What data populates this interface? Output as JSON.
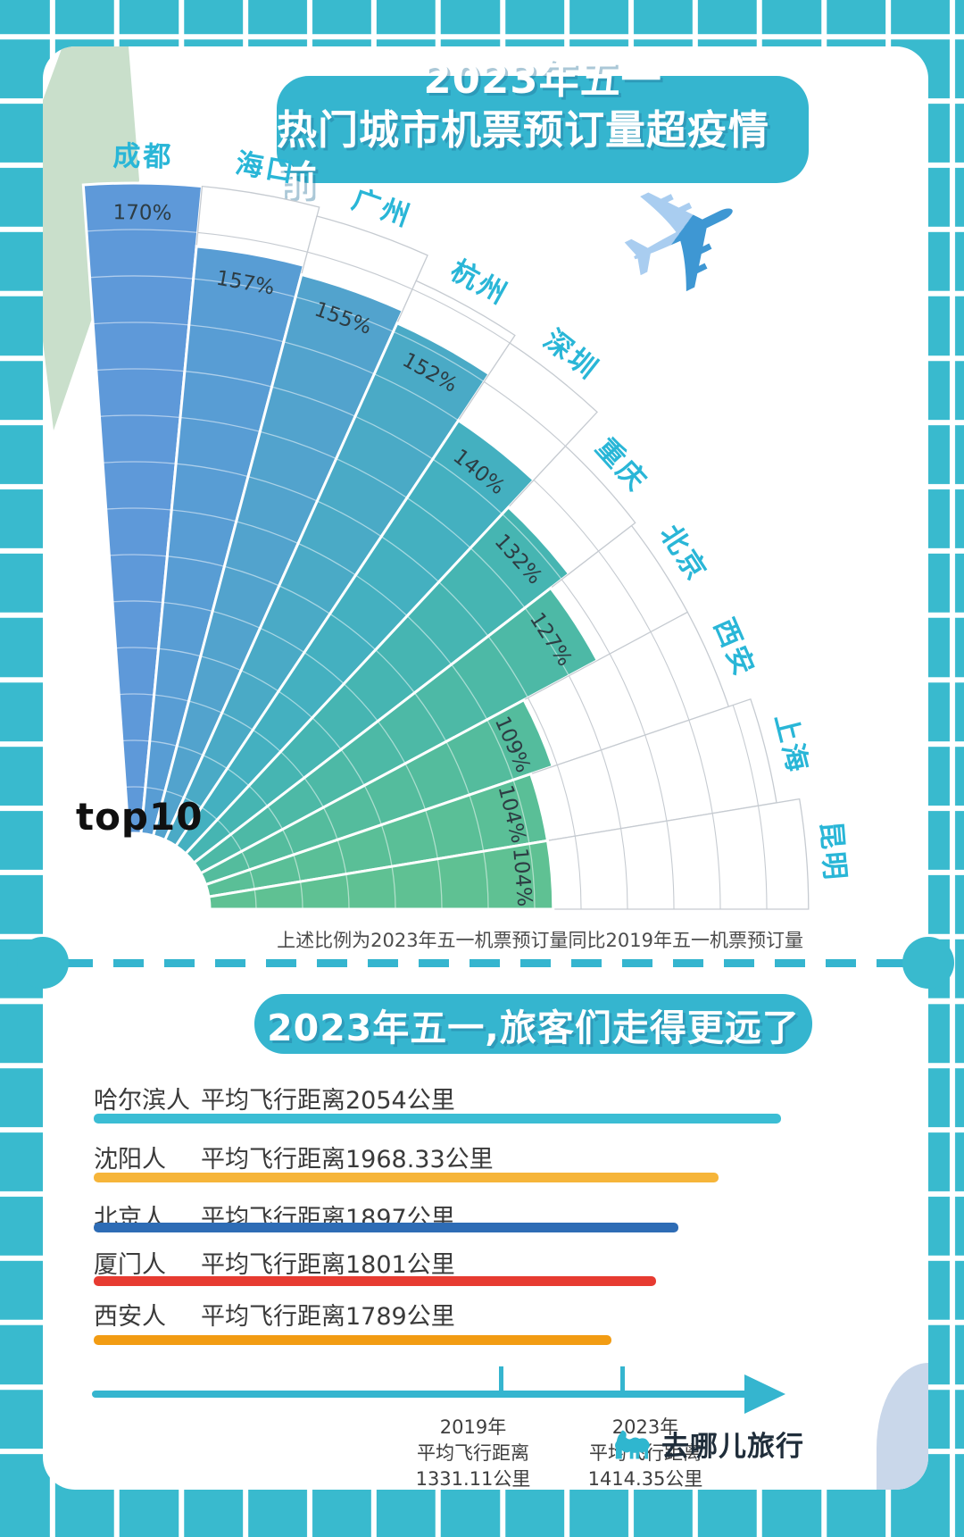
{
  "poster": {
    "title_line1": "2023年五一",
    "title_line2": "热门城市机票预订量超疫情前",
    "top10_label": "top10",
    "fan_footnote": "上述比例为2023年五一机票预订量同比2019年五一机票预订量",
    "section2_title": "2023年五一,旅客们走得更远了",
    "brand_name": "去哪儿旅行"
  },
  "chart_data": [
    {
      "type": "bar",
      "subtype": "radial-fan",
      "title": "2023年五一 热门城市机票预订量超疫情前 top10",
      "categories": [
        "成都",
        "海口",
        "广州",
        "杭州",
        "深圳",
        "重庆",
        "北京",
        "西安",
        "上海",
        "昆明"
      ],
      "values": [
        170,
        157,
        155,
        152,
        140,
        132,
        127,
        109,
        104,
        104
      ],
      "unit": "%",
      "note": "上述比例为2023年五一机票预订量同比2019年五一机票预订量",
      "legend_position": "none",
      "grid": true,
      "palette": [
        "#5e99d9",
        "#589dd4",
        "#52a3cd",
        "#4aaac6",
        "#44b0c0",
        "#46b5b2",
        "#4db9a6",
        "#54bc9d",
        "#5abf97",
        "#5fc193"
      ],
      "category_label_color": "#29b6d7",
      "value_label_color": "#2d3c43"
    },
    {
      "type": "bar",
      "subtype": "horizontal",
      "title": "2023年五一,旅客们走得更远了",
      "categories": [
        "哈尔滨人",
        "沈阳人",
        "北京人",
        "厦门人",
        "西安人"
      ],
      "values": [
        2054,
        1968.33,
        1897,
        1801,
        1789
      ],
      "value_labels": [
        "平均飞行距离2054公里",
        "平均飞行距离1968.33公里",
        "平均飞行距离1897公里",
        "平均飞行距离1801公里",
        "平均飞行距离1789公里"
      ],
      "unit": "公里",
      "colors": [
        "#3bbdd4",
        "#f6b53a",
        "#2e6cb5",
        "#e73b31",
        "#f29c13"
      ]
    },
    {
      "type": "timeline",
      "points": [
        {
          "year": "2019年",
          "label_lines": [
            "2019年",
            "平均飞行距离",
            "1331.11公里"
          ],
          "value": 1331.11
        },
        {
          "year": "2023年",
          "label_lines": [
            "2023年",
            "平均飞行距离",
            "1414.35公里"
          ],
          "value": 1414.35
        }
      ],
      "color": "#35b5cf"
    }
  ],
  "icons": {
    "plane": "✈",
    "camel": "camel-logo"
  },
  "colors": {
    "background_grid": "#39bace",
    "card": "#ffffff",
    "accent": "#35b5cf",
    "green_triangle": "#c9dfcb",
    "corner_blob": "#c9d7ea"
  }
}
